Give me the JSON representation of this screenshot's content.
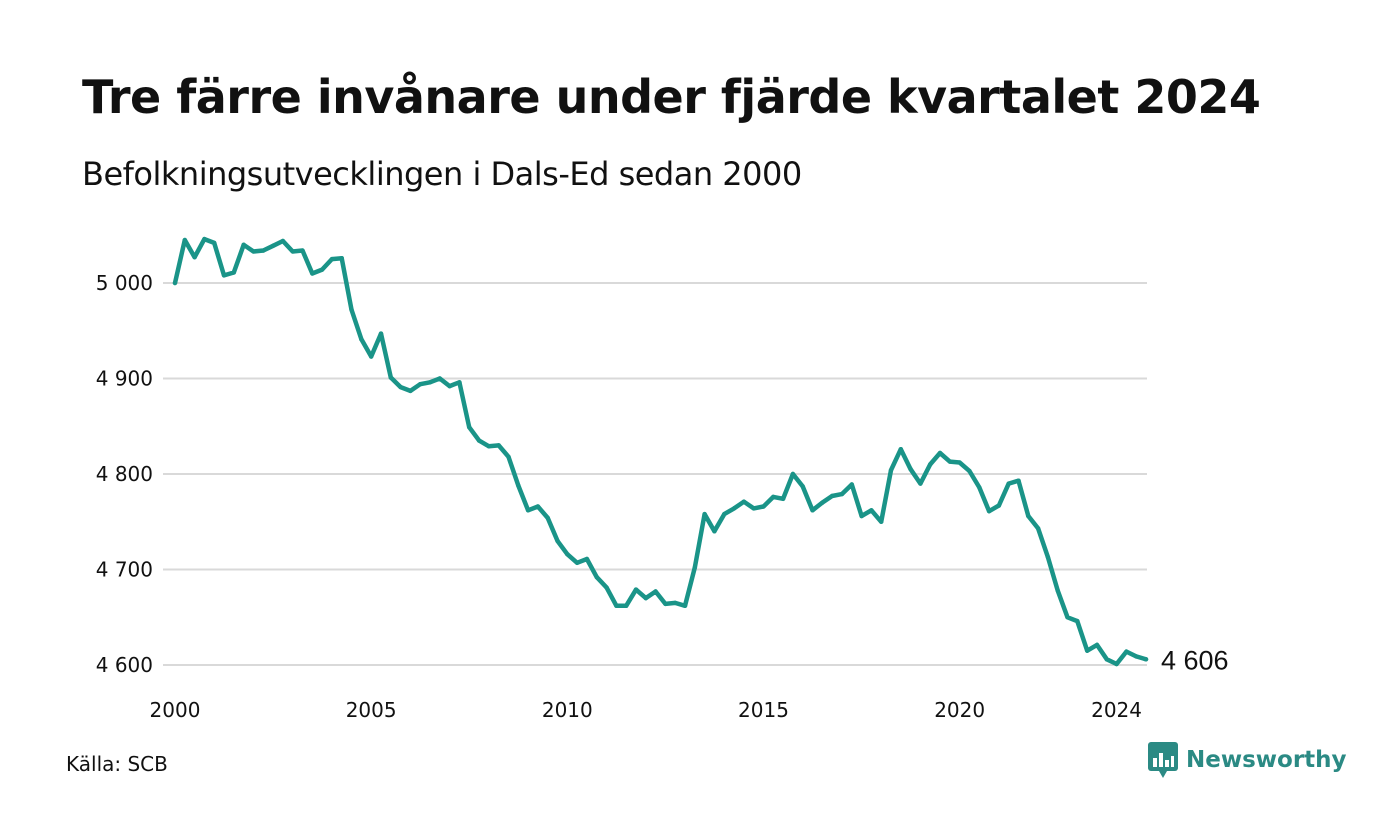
{
  "title": "Tre färre invånare under fjärde kvartalet 2024",
  "subtitle": "Befolkningsutvecklingen i Dals-Ed sedan 2000",
  "source": "Källa: SCB",
  "brand": {
    "name": "Newsworthy",
    "icon": "newsworthy-chart-bubble-icon",
    "color": "#2b8a84"
  },
  "colors": {
    "line": "#1a9488",
    "grid": "#d9d9d9"
  },
  "chart_data": {
    "type": "line",
    "title": "Tre färre invånare under fjärde kvartalet 2024",
    "subtitle": "Befolkningsutvecklingen i Dals-Ed sedan 2000",
    "xlabel": "",
    "ylabel": "",
    "grid": true,
    "xlim": [
      2000,
      2024.75
    ],
    "ylim": [
      4580,
      5060
    ],
    "x_ticks": [
      2000,
      2005,
      2010,
      2015,
      2020,
      2024
    ],
    "x_tick_labels": [
      "2000",
      "2005",
      "2010",
      "2015",
      "2020",
      "2024"
    ],
    "y_ticks": [
      4600,
      4700,
      4800,
      4900,
      5000
    ],
    "y_tick_labels": [
      "4 600",
      "4 700",
      "4 800",
      "4 900",
      "5 000"
    ],
    "end_label": "4 606",
    "series": [
      {
        "x": [
          2000.0,
          2000.25,
          2000.5,
          2000.75,
          2001.0,
          2001.25,
          2001.5,
          2001.75,
          2002.0,
          2002.25,
          2002.5,
          2002.75,
          2003.0,
          2003.25,
          2003.5,
          2003.75,
          2004.0,
          2004.25,
          2004.5,
          2004.75,
          2005.0,
          2005.25,
          2005.5,
          2005.75,
          2006.0,
          2006.25,
          2006.5,
          2006.75,
          2007.0,
          2007.25,
          2007.5,
          2007.75,
          2008.0,
          2008.25,
          2008.5,
          2008.75,
          2009.0,
          2009.25,
          2009.5,
          2009.75,
          2010.0,
          2010.25,
          2010.5,
          2010.75,
          2011.0,
          2011.25,
          2011.5,
          2011.75,
          2012.0,
          2012.25,
          2012.5,
          2012.75,
          2013.0,
          2013.25,
          2013.5,
          2013.75,
          2014.0,
          2014.25,
          2014.5,
          2014.75,
          2015.0,
          2015.25,
          2015.5,
          2015.75,
          2016.0,
          2016.25,
          2016.5,
          2016.75,
          2017.0,
          2017.25,
          2017.5,
          2017.75,
          2018.0,
          2018.25,
          2018.5,
          2018.75,
          2019.0,
          2019.25,
          2019.5,
          2019.75,
          2020.0,
          2020.25,
          2020.5,
          2020.75,
          2021.0,
          2021.25,
          2021.5,
          2021.75,
          2022.0,
          2022.25,
          2022.5,
          2022.75,
          2023.0,
          2023.25,
          2023.5,
          2023.75,
          2024.0,
          2024.25,
          2024.5,
          2024.75
        ],
        "y": [
          5000,
          5045,
          5027,
          5046,
          5042,
          5008,
          5011,
          5040,
          5033,
          5034,
          5039,
          5044,
          5033,
          5034,
          5010,
          5014,
          5025,
          5026,
          4972,
          4941,
          4923,
          4947,
          4901,
          4891,
          4887,
          4894,
          4896,
          4900,
          4892,
          4896,
          4849,
          4835,
          4829,
          4830,
          4818,
          4788,
          4762,
          4766,
          4754,
          4730,
          4716,
          4707,
          4711,
          4692,
          4681,
          4662,
          4662,
          4679,
          4670,
          4677,
          4664,
          4665,
          4662,
          4702,
          4758,
          4740,
          4758,
          4764,
          4771,
          4764,
          4766,
          4776,
          4774,
          4800,
          4787,
          4762,
          4770,
          4777,
          4779,
          4789,
          4756,
          4762,
          4750,
          4804,
          4826,
          4805,
          4790,
          4810,
          4822,
          4813,
          4812,
          4803,
          4786,
          4761,
          4767,
          4790,
          4793,
          4756,
          4743,
          4713,
          4678,
          4650,
          4646,
          4615,
          4621,
          4606,
          4601,
          4614,
          4609,
          4606
        ]
      }
    ]
  }
}
